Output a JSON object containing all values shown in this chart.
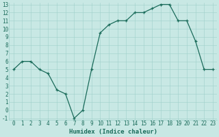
{
  "x": [
    0,
    1,
    2,
    3,
    4,
    5,
    6,
    7,
    8,
    9,
    10,
    11,
    12,
    13,
    14,
    15,
    16,
    17,
    18,
    19,
    20,
    21,
    22,
    23
  ],
  "y": [
    5,
    6,
    6,
    5,
    4.5,
    2.5,
    2,
    -1,
    0,
    5,
    9.5,
    10.5,
    11,
    11,
    12,
    12,
    12.5,
    13,
    13,
    11,
    11,
    8.5,
    5,
    5
  ],
  "line_color": "#1a6b5a",
  "bg_color": "#c8e8e4",
  "grid_color": "#9ecfca",
  "xlabel": "Humidex (Indice chaleur)",
  "ylim_min": -1,
  "ylim_max": 13,
  "xlim_min": 0,
  "xlim_max": 23,
  "yticks": [
    -1,
    0,
    1,
    2,
    3,
    4,
    5,
    6,
    7,
    8,
    9,
    10,
    11,
    12,
    13
  ],
  "xticks": [
    0,
    1,
    2,
    3,
    4,
    5,
    6,
    7,
    8,
    9,
    10,
    11,
    12,
    13,
    14,
    15,
    16,
    17,
    18,
    19,
    20,
    21,
    22,
    23
  ],
  "text_color": "#1a6b5a",
  "tick_fontsize": 5.5,
  "label_fontsize": 6.5
}
